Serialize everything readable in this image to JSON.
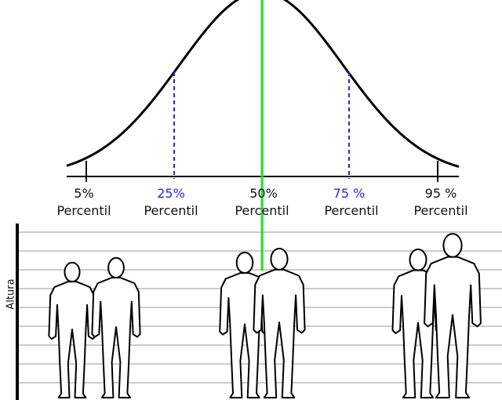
{
  "labels": [
    {
      "percent": "5%",
      "word": "Percentil"
    },
    {
      "percent": "25%",
      "word": "Percentil"
    },
    {
      "percent": "50%",
      "word": "Percentil"
    },
    {
      "percent": "75 %",
      "word": "Percentil"
    },
    {
      "percent": "95 %",
      "word": "Percentil"
    }
  ],
  "axis_label": "Altura"
}
